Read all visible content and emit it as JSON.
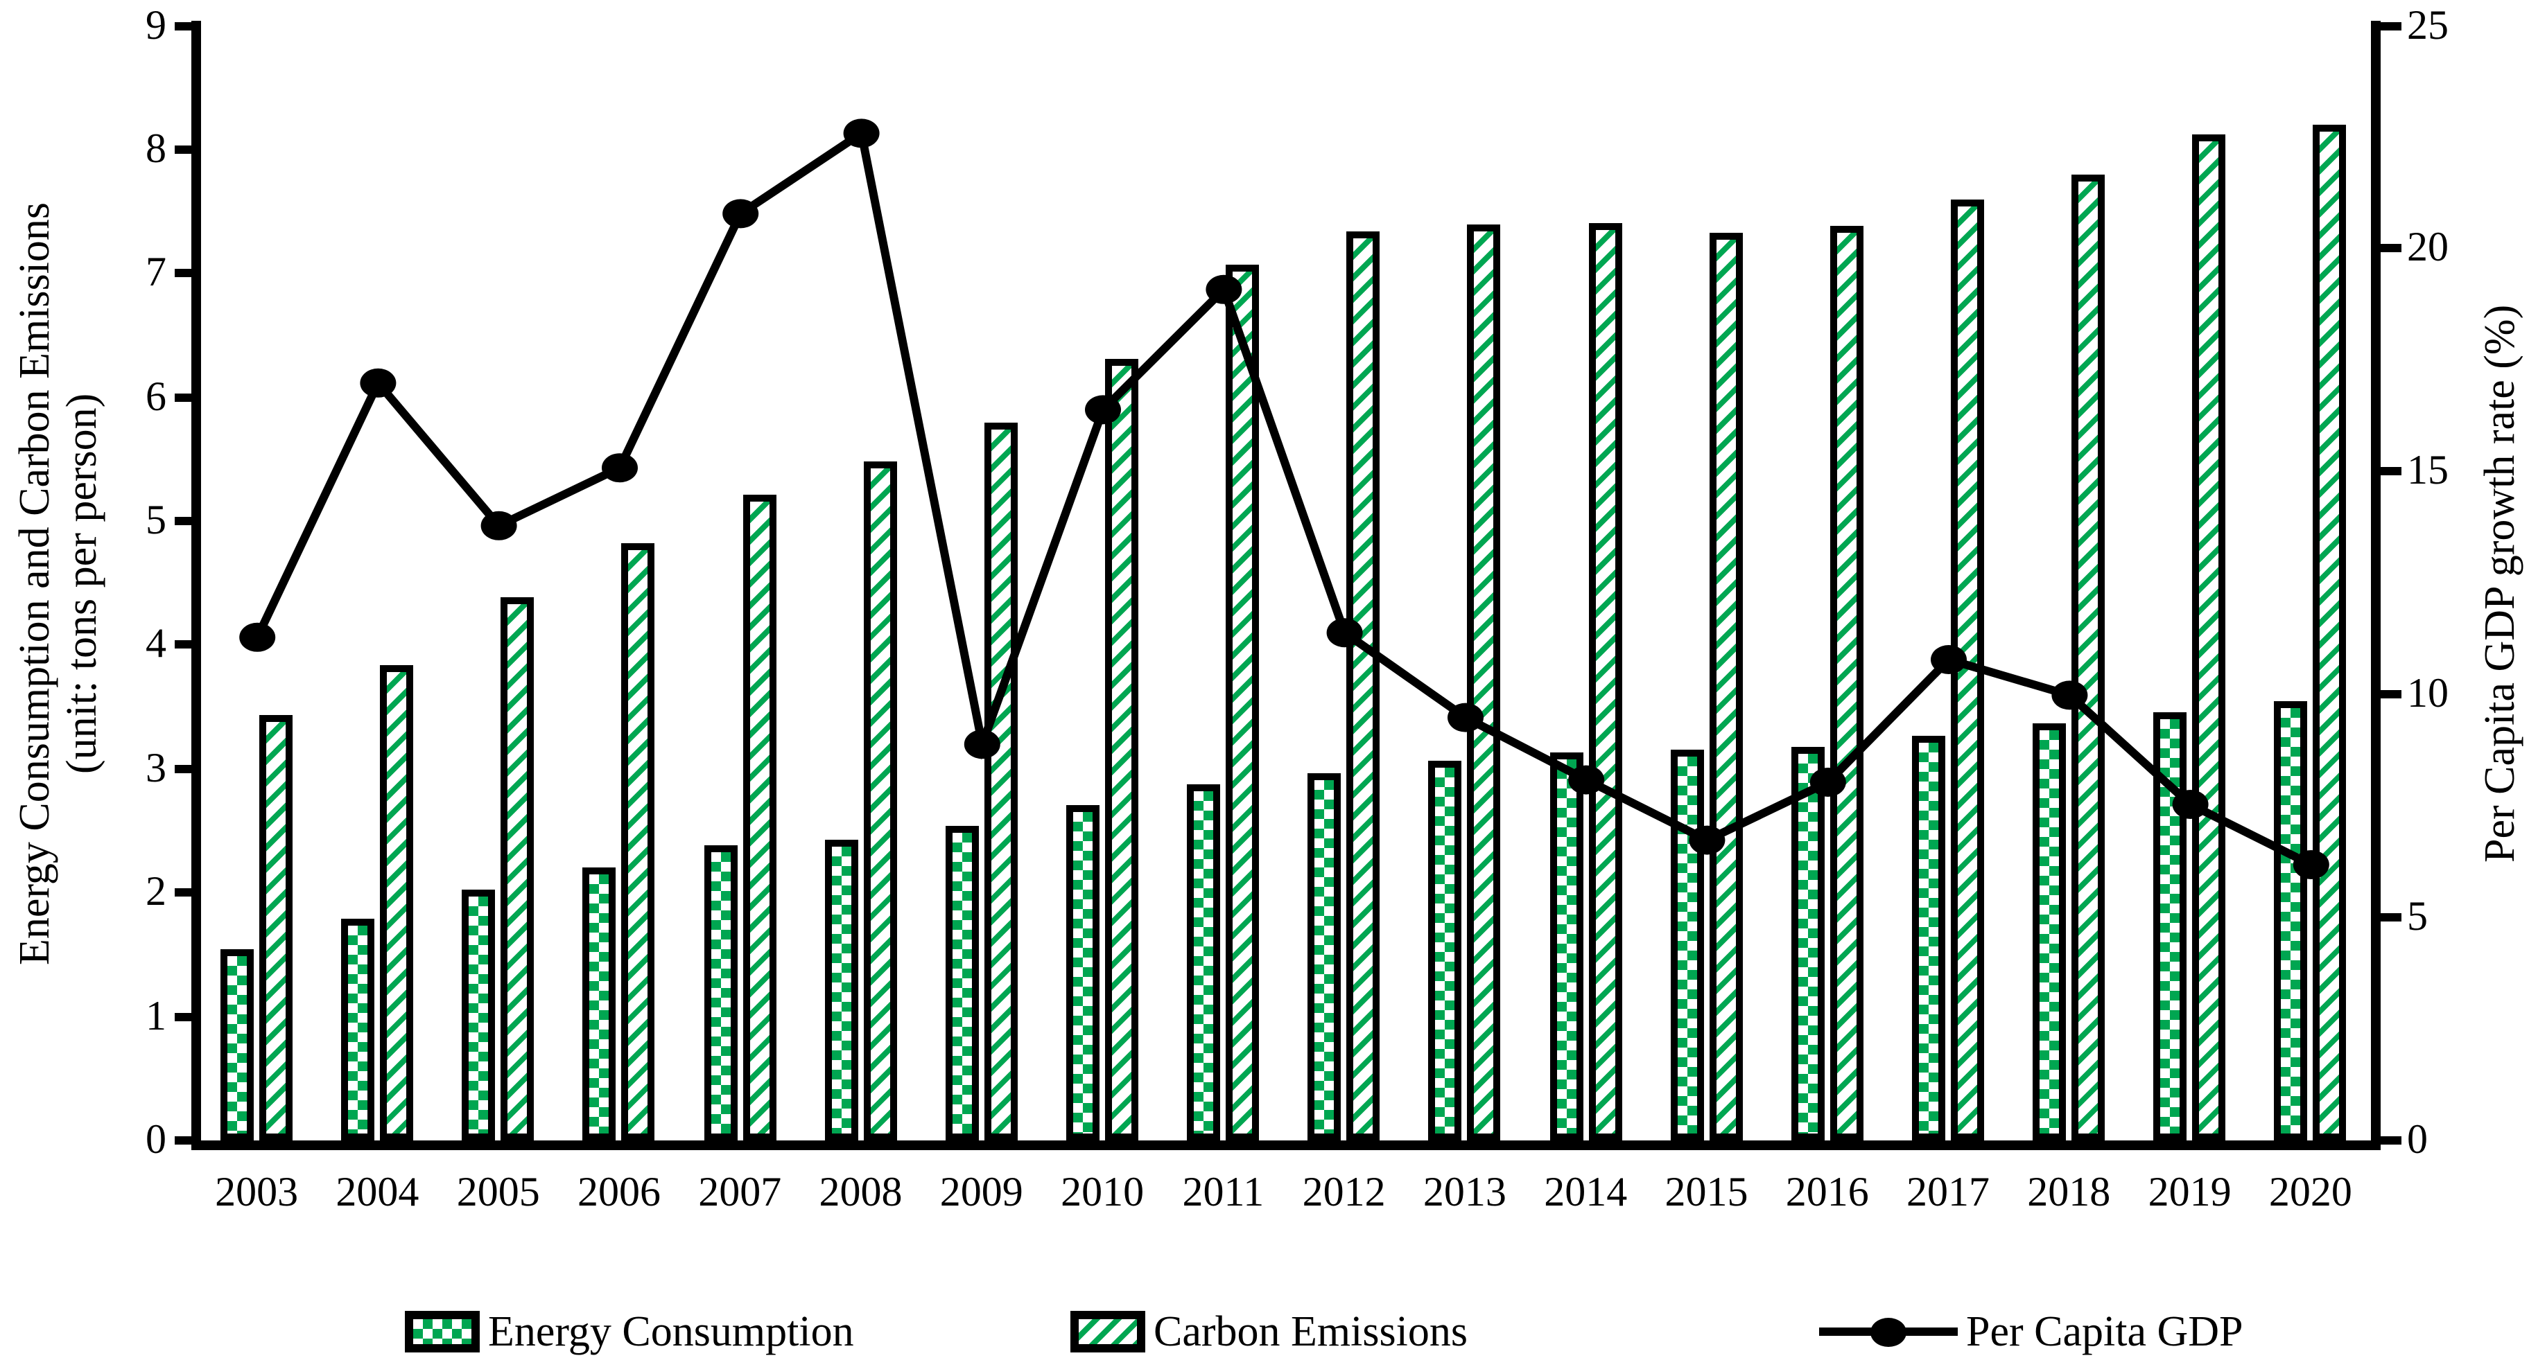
{
  "chart_data": {
    "type": "bar+line",
    "categories": [
      "2003",
      "2004",
      "2005",
      "2006",
      "2007",
      "2008",
      "2009",
      "2010",
      "2011",
      "2012",
      "2013",
      "2014",
      "2015",
      "2016",
      "2017",
      "2018",
      "2019",
      "2020"
    ],
    "series": [
      {
        "name": "Energy Consumption",
        "type": "bar",
        "axis": "left",
        "pattern": "green-checker",
        "values": [
          1.54,
          1.79,
          2.03,
          2.2,
          2.38,
          2.43,
          2.54,
          2.71,
          2.88,
          2.97,
          3.06,
          3.13,
          3.16,
          3.18,
          3.27,
          3.37,
          3.46,
          3.55
        ]
      },
      {
        "name": "Carbon Emissions",
        "type": "bar",
        "axis": "left",
        "pattern": "green-diagonal-hatch",
        "values": [
          3.43,
          3.84,
          4.38,
          4.82,
          5.21,
          5.48,
          5.79,
          6.31,
          7.07,
          7.34,
          7.39,
          7.41,
          7.33,
          7.38,
          7.6,
          7.8,
          8.12,
          8.2
        ]
      },
      {
        "name": "Per Capita GDP",
        "type": "line",
        "axis": "right",
        "marker": "filled-circle",
        "values": [
          11.3,
          17.0,
          13.8,
          15.1,
          20.8,
          22.6,
          8.9,
          16.4,
          19.1,
          11.4,
          9.5,
          8.1,
          6.75,
          8.05,
          10.8,
          10.0,
          7.55,
          6.2
        ]
      }
    ],
    "left_axis": {
      "title_line1": "Energy Consumption and Carbon Emissions",
      "title_line2": "(unit: tons per person)",
      "min": 0,
      "max": 9,
      "tick_step": 1,
      "ticks": [
        0,
        1,
        2,
        3,
        4,
        5,
        6,
        7,
        8,
        9
      ]
    },
    "right_axis": {
      "title": "Per Capita GDP growth rate  (%)",
      "min": 0,
      "max": 25,
      "tick_step": 5,
      "ticks": [
        0,
        5,
        10,
        15,
        20,
        25
      ]
    },
    "legend": {
      "position": "bottom",
      "items": [
        {
          "label": "Energy Consumption",
          "swatch": "green-checker"
        },
        {
          "label": "Carbon Emissions",
          "swatch": "green-diagonal-hatch"
        },
        {
          "label": "Per Capita GDP",
          "swatch": "line-with-dot"
        }
      ]
    },
    "grid": false,
    "colors": {
      "bar_green": "#00A651",
      "line": "#000000",
      "axis": "#000000",
      "background": "#ffffff"
    }
  }
}
